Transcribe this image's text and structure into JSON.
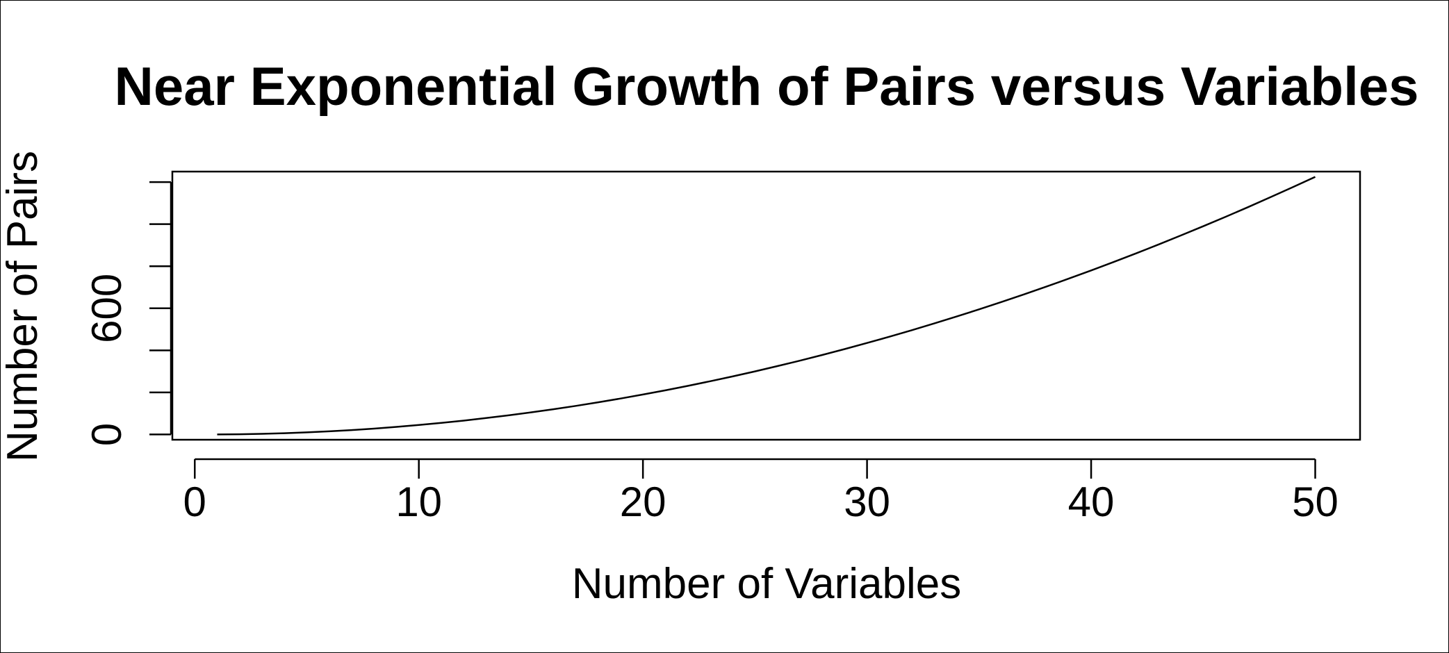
{
  "chart_data": {
    "type": "line",
    "title": "Near Exponential Growth of Pairs versus Variables",
    "xlabel": "Number of Variables",
    "ylabel": "Number of Pairs",
    "xlim": [
      -1,
      52
    ],
    "ylim": [
      -25,
      1250
    ],
    "x_ticks": [
      0,
      10,
      20,
      30,
      40,
      50
    ],
    "x_tick_labels": [
      "0",
      "10",
      "20",
      "30",
      "40",
      "50"
    ],
    "y_ticks": [
      0,
      200,
      400,
      600,
      800,
      1000,
      1200
    ],
    "y_tick_labels": [
      "0",
      "",
      "",
      "600",
      "",
      "",
      ""
    ],
    "grid": false,
    "line_color": "#000000",
    "series": [
      {
        "x": [
          1,
          2,
          3,
          4,
          5,
          6,
          7,
          8,
          9,
          10,
          11,
          12,
          13,
          14,
          15,
          16,
          17,
          18,
          19,
          20,
          21,
          22,
          23,
          24,
          25,
          26,
          27,
          28,
          29,
          30,
          31,
          32,
          33,
          34,
          35,
          36,
          37,
          38,
          39,
          40,
          41,
          42,
          43,
          44,
          45,
          46,
          47,
          48,
          49,
          50
        ],
        "y": [
          0,
          1,
          3,
          6,
          10,
          15,
          21,
          28,
          36,
          45,
          55,
          66,
          78,
          91,
          105,
          120,
          136,
          153,
          171,
          190,
          210,
          231,
          253,
          276,
          300,
          325,
          351,
          378,
          406,
          435,
          465,
          496,
          528,
          561,
          595,
          630,
          666,
          703,
          741,
          780,
          820,
          861,
          903,
          946,
          990,
          1035,
          1081,
          1128,
          1176,
          1225
        ]
      }
    ]
  }
}
